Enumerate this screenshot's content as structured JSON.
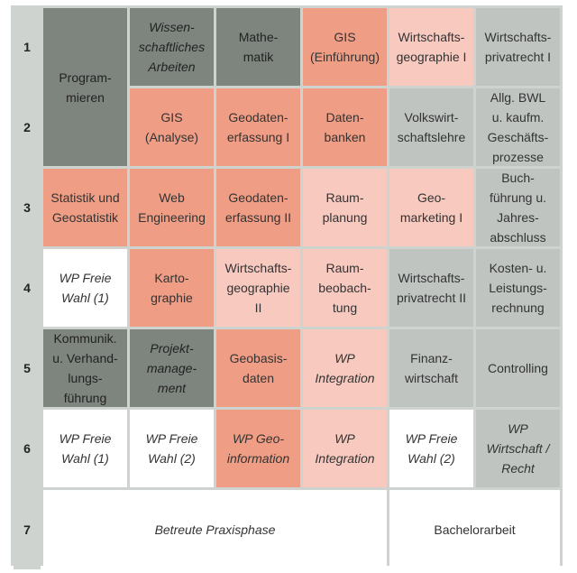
{
  "rows": [
    "1",
    "2",
    "3",
    "4",
    "5",
    "6",
    "7"
  ],
  "colors": {
    "dark": "#7e857f",
    "coral": "#ef9d84",
    "pink": "#f7c9bf",
    "gray": "#bfc4c1",
    "white": "#ffffff"
  },
  "cells": {
    "programmieren": "Program-\nmieren",
    "wiss_arbeiten": "Wissen-\nschaftliches\nArbeiten",
    "mathematik": "Mathe-\nmatik",
    "gis_einfuehrung": "GIS\n(Einführung)",
    "wi_geo_1": "Wirtschafts-\ngeographie I",
    "wi_privatrecht_1": "Wirtschafts-\nprivatrecht I",
    "gis_analyse": "GIS\n(Analyse)",
    "geodatenerfassung_1": "Geodaten-\nerfassung I",
    "datenbanken": "Daten-\nbanken",
    "vwl": "Volkswirt-\nschaftslehre",
    "bwl": "Allg. BWL\nu. kaufm.\nGeschäfts-\nprozesse",
    "statistik": "Statistik und\nGeostatistik",
    "web_eng": "Web\nEngineering",
    "geodatenerfassung_2": "Geodaten-\nerfassung II",
    "raumplanung": "Raum-\nplanung",
    "geomarketing": "Geo-\nmarketing I",
    "buchfuehrung": "Buch-\nführung u.\nJahres-\nabschluss",
    "wp_freie_1_r4": "WP Freie\nWahl (1)",
    "kartographie": "Karto-\ngraphie",
    "wi_geo_2": "Wirtschafts-\ngeographie\nII",
    "raumbeobachtung": "Raum-\nbeobach-\ntung",
    "wi_privatrecht_2": "Wirtschafts-\nprivatrecht II",
    "kosten": "Kosten- u.\nLeistungs-\nrechnung",
    "kommunikation": "Kommunik.\nu. Verhand-\nlungs-\nführung",
    "projektmanagement": "Projekt-\nmanage-\nment",
    "geobasisdaten": "Geobasis-\ndaten",
    "wp_integration_r5": "WP\nIntegration",
    "finanzwirtschaft": "Finanz-\nwirtschaft",
    "controlling": "Controlling",
    "wp_freie_1_r6": "WP Freie\nWahl (1)",
    "wp_freie_2_r6a": "WP Freie\nWahl (2)",
    "wp_geoinformation": "WP Geo-\ninformation",
    "wp_integration_r6": "WP\nIntegration",
    "wp_freie_2_r6b": "WP Freie\nWahl (2)",
    "wp_wirtschaft_recht": "WP\nWirtschaft /\nRecht",
    "praxisphase": "Betreute Praxisphase",
    "bachelorarbeit": "Bachelorarbeit"
  }
}
